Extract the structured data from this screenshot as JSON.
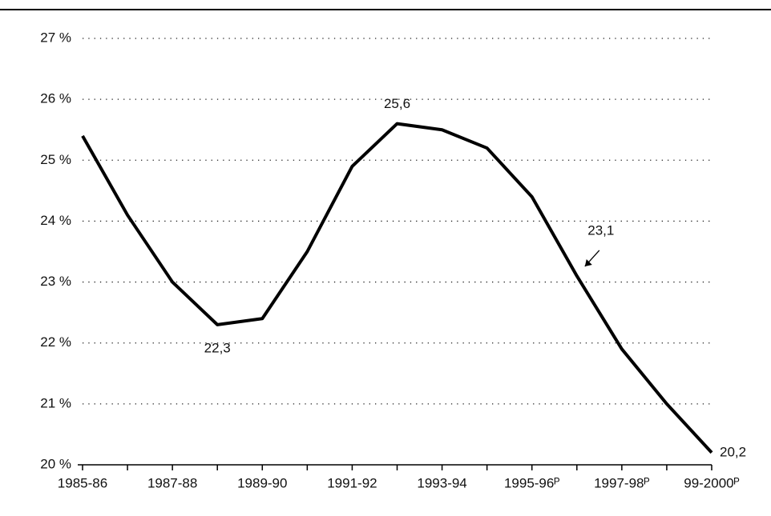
{
  "chart_data": {
    "type": "line",
    "categories": [
      "1985-86",
      null,
      "1987-88",
      null,
      "1989-90",
      null,
      "1991-92",
      null,
      "1993-94",
      null,
      "1995-96ᴾ",
      null,
      "1997-98ᴾ",
      null,
      "99-2000ᴾ"
    ],
    "series": [
      {
        "color": "#000000",
        "values": [
          25.4,
          24.1,
          23.0,
          22.3,
          22.4,
          23.5,
          24.9,
          25.6,
          25.5,
          25.2,
          24.4,
          23.1,
          21.9,
          21.0,
          20.2
        ],
        "value_labels": [
          null,
          null,
          null,
          "22,3",
          null,
          null,
          null,
          "25,6",
          null,
          null,
          null,
          "23,1",
          null,
          null,
          "20,2"
        ]
      }
    ],
    "ylim": [
      20,
      27
    ],
    "yticks": [
      {
        "value": 20,
        "label": "20 %"
      },
      {
        "value": 21,
        "label": "21 %"
      },
      {
        "value": 22,
        "label": "22 %"
      },
      {
        "value": 23,
        "label": "23 %"
      },
      {
        "value": 24,
        "label": "24 %"
      },
      {
        "value": 25,
        "label": "25 %"
      },
      {
        "value": 26,
        "label": "26 %"
      },
      {
        "value": 27,
        "label": "27 %"
      }
    ],
    "grid": true
  }
}
